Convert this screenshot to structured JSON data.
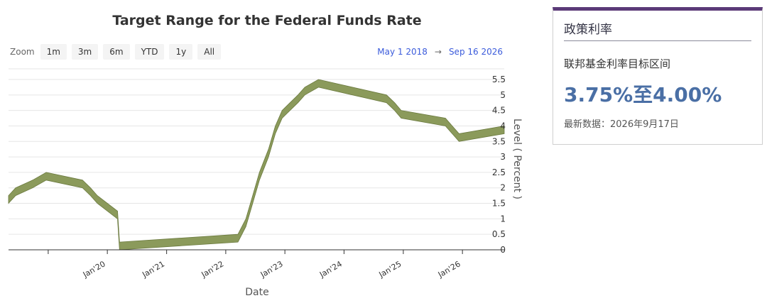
{
  "zoom": {
    "label": "Zoom",
    "buttons": [
      "1m",
      "3m",
      "6m",
      "YTD",
      "1y",
      "All"
    ]
  },
  "range": {
    "from": "May 1 2018",
    "arrow": "→",
    "to": "Sep 16 2026"
  },
  "card": {
    "heading": "政策利率",
    "subtitle": "联邦基金利率目标区间",
    "value": "3.75%至4.00%",
    "update": "最新数据：2026年9月17日",
    "accent_color": "#5b3a78",
    "value_color": "#4a6fa5"
  },
  "chart_data": {
    "type": "area",
    "title": "Target Range for the Federal Funds Rate",
    "xlabel": "Date",
    "ylabel": "Level ( Percent )",
    "ylim": [
      0,
      5.5
    ],
    "yticks": [
      "0",
      "0.5",
      "1",
      "1.5",
      "2",
      "2.5",
      "3",
      "3.5",
      "4",
      "4.5",
      "5",
      "5.5"
    ],
    "xlim": [
      "2018-05-01",
      "2026-09-16"
    ],
    "xticks": [
      "Jan'20",
      "Jan'21",
      "Jan'22",
      "Jan'23",
      "Jan'24",
      "Jan'25",
      "Jan'26"
    ],
    "grid": true,
    "fill_color": "#8b9a5b",
    "edge_color": "#6b7a3f",
    "series": [
      {
        "x": [
          "2018-05-01",
          "2018-06-14",
          "2018-09-27",
          "2018-12-20",
          "2019-08-01",
          "2019-09-19",
          "2019-10-31",
          "2020-03-04",
          "2020-03-16",
          "2022-03-17",
          "2022-05-05",
          "2022-06-16",
          "2022-07-28",
          "2022-09-22",
          "2022-11-03",
          "2022-12-15",
          "2023-02-02",
          "2023-03-23",
          "2023-05-04",
          "2023-07-27",
          "2024-09-19",
          "2024-11-08",
          "2024-12-19",
          "2025-09-18",
          "2025-10-30",
          "2025-12-11",
          "2026-09-16"
        ],
        "lower": [
          1.5,
          1.75,
          2.0,
          2.25,
          2.0,
          1.75,
          1.5,
          1.0,
          0.0,
          0.25,
          0.75,
          1.5,
          2.25,
          3.0,
          3.75,
          4.25,
          4.5,
          4.75,
          5.0,
          5.25,
          4.75,
          4.5,
          4.25,
          4.0,
          3.75,
          3.5,
          3.75
        ],
        "upper": [
          1.75,
          2.0,
          2.25,
          2.5,
          2.25,
          2.0,
          1.75,
          1.25,
          0.25,
          0.5,
          1.0,
          1.75,
          2.5,
          3.25,
          4.0,
          4.5,
          4.75,
          5.0,
          5.25,
          5.5,
          5.0,
          4.75,
          4.5,
          4.25,
          4.0,
          3.75,
          4.0
        ]
      }
    ]
  }
}
